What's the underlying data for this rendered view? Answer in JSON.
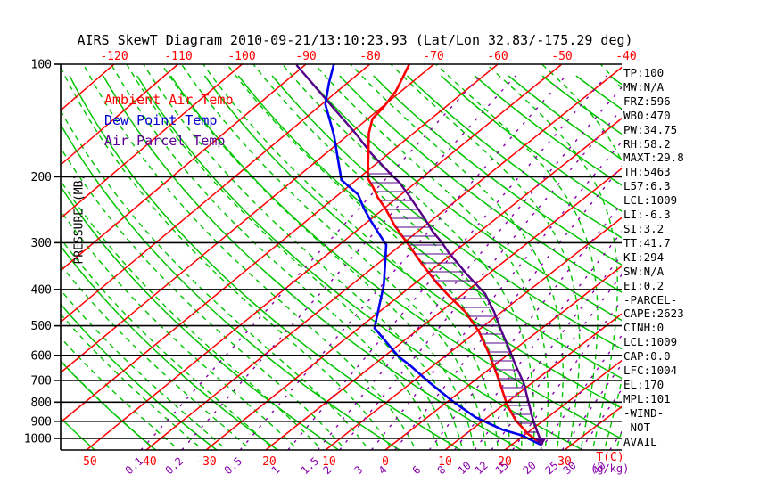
{
  "title": "AIRS SkewT Diagram 2010-09-21/13:10:23.93 (Lat/Lon 32.83/-175.29 deg)",
  "legend": {
    "ambient": "Ambient Air Temp",
    "dew_point": "Dew Point Temp",
    "parcel": "Air Parcel Temp"
  },
  "stats": [
    "TP:100",
    "MW:N/A",
    "FRZ:596",
    "WB0:470",
    "PW:34.75",
    "RH:58.2",
    "MAXT:29.8",
    "TH:5463",
    "L57:6.3",
    "LCL:1009",
    "LI:-6.3",
    "SI:3.2",
    "TT:41.7",
    "KI:294",
    "SW:N/A",
    "EI:0.2",
    "-PARCEL-",
    "CAPE:2623",
    "CINH:0",
    "LCL:1009",
    "CAP:0.0",
    "LFC:1004",
    "EL:170",
    "MPL:101",
    "-WIND-",
    " NOT",
    "AVAIL"
  ],
  "axes": {
    "pressure_axis_label": "PRESSURE (MB)",
    "pressure_ticks": [
      100,
      200,
      300,
      400,
      500,
      600,
      700,
      800,
      900,
      1000
    ],
    "top_temp_ticks": [
      -120,
      -110,
      -100,
      -90,
      -80,
      -70,
      -60,
      -50,
      -40
    ],
    "bottom_temp_ticks": [
      -50,
      -40,
      -30,
      -20,
      -10,
      0,
      10,
      20,
      30
    ],
    "temp_unit_label": "T(C)",
    "mixing_ratio_ticks": [
      "0.1",
      "0.2",
      "0.5",
      "1",
      "1.5",
      "2",
      "3",
      "4",
      "6",
      "8",
      "10",
      "12",
      "15",
      "20",
      "25",
      "30",
      "40"
    ],
    "mixing_unit_label": "(g/kg)"
  },
  "colors": {
    "background": "#ffffff",
    "grid_black": "#000000",
    "isotherm_red": "#ff0000",
    "adiabat_green": "#00c400",
    "mixing_purple": "#8800aa",
    "ambient_red": "#ff0000",
    "dew_blue": "#0000ee",
    "parcel_purple": "#550088"
  },
  "chart_data": {
    "type": "line",
    "subtype": "skewt-log-p",
    "title": "AIRS SkewT Diagram 2010-09-21/13:10:23.93 (Lat/Lon 32.83/-175.29 deg)",
    "xlabel": "T(C)",
    "ylabel": "PRESSURE (MB)",
    "x_range_surface_c": [
      -55,
      40
    ],
    "pressure_range_mb": [
      100,
      1050
    ],
    "grid": "skew-t log-p (isotherms every 10 C, dry adiabats every 10 K, saturated adiabats dashed, mixing-ratio lines dashed)",
    "legend_position": "upper-left",
    "series": [
      {
        "name": "Ambient Air Temp",
        "units": [
          "mb",
          "C"
        ],
        "points": [
          [
            1039,
            25.1
          ],
          [
            973,
            20.4
          ],
          [
            896,
            15.4
          ],
          [
            816,
            10.7
          ],
          [
            752,
            7.1
          ],
          [
            674,
            2.3
          ],
          [
            587,
            -3.9
          ],
          [
            518,
            -9.7
          ],
          [
            459,
            -16.0
          ],
          [
            416,
            -22.0
          ],
          [
            385,
            -26.5
          ],
          [
            343,
            -32.7
          ],
          [
            301,
            -39.4
          ],
          [
            270,
            -45.0
          ],
          [
            244,
            -49.7
          ],
          [
            227,
            -53.3
          ],
          [
            213,
            -56.1
          ],
          [
            202,
            -58.6
          ],
          [
            153,
            -67.2
          ],
          [
            140,
            -69.4
          ],
          [
            130,
            -69.9
          ],
          [
            118,
            -71.0
          ],
          [
            100,
            -74.0
          ]
        ]
      },
      {
        "name": "Dew Point Temp",
        "units": [
          "mb",
          "C"
        ],
        "points": [
          [
            1039,
            24.8
          ],
          [
            981,
            19.6
          ],
          [
            947,
            15.1
          ],
          [
            877,
            7.9
          ],
          [
            794,
            0.6
          ],
          [
            711,
            -6.9
          ],
          [
            638,
            -13.9
          ],
          [
            604,
            -17.7
          ],
          [
            507,
            -27.5
          ],
          [
            447,
            -31.0
          ],
          [
            389,
            -34.8
          ],
          [
            304,
            -42.5
          ],
          [
            277,
            -47.1
          ],
          [
            261,
            -50.0
          ],
          [
            242,
            -53.5
          ],
          [
            223,
            -57.0
          ],
          [
            204,
            -62.5
          ],
          [
            174,
            -68.2
          ],
          [
            155,
            -72.3
          ],
          [
            128,
            -79.6
          ],
          [
            112,
            -83.1
          ],
          [
            100,
            -85.8
          ]
        ]
      },
      {
        "name": "Air Parcel Temp",
        "units": [
          "mb",
          "C"
        ],
        "points": [
          [
            1039,
            25.1
          ],
          [
            953,
            21.1
          ],
          [
            877,
            17.4
          ],
          [
            794,
            13.2
          ],
          [
            711,
            8.6
          ],
          [
            638,
            3.5
          ],
          [
            571,
            -1.5
          ],
          [
            513,
            -6.4
          ],
          [
            459,
            -11.3
          ],
          [
            411,
            -16.5
          ],
          [
            383,
            -20.6
          ],
          [
            363,
            -23.7
          ],
          [
            340,
            -27.3
          ],
          [
            318,
            -31.0
          ],
          [
            299,
            -34.1
          ],
          [
            280,
            -37.7
          ],
          [
            261,
            -41.1
          ],
          [
            242,
            -44.9
          ],
          [
            223,
            -49.0
          ],
          [
            207,
            -52.8
          ],
          [
            196,
            -56.0
          ],
          [
            174,
            -62.7
          ],
          [
            153,
            -69.3
          ],
          [
            130,
            -78.0
          ],
          [
            100.5,
            -91.5
          ]
        ]
      }
    ],
    "annotations": {
      "cape_hatch": "horizontal purple hatching between Air Parcel Temp and Ambient Air Temp curves from ~195 mb (EL) down to surface (positive CAPE area)"
    }
  }
}
